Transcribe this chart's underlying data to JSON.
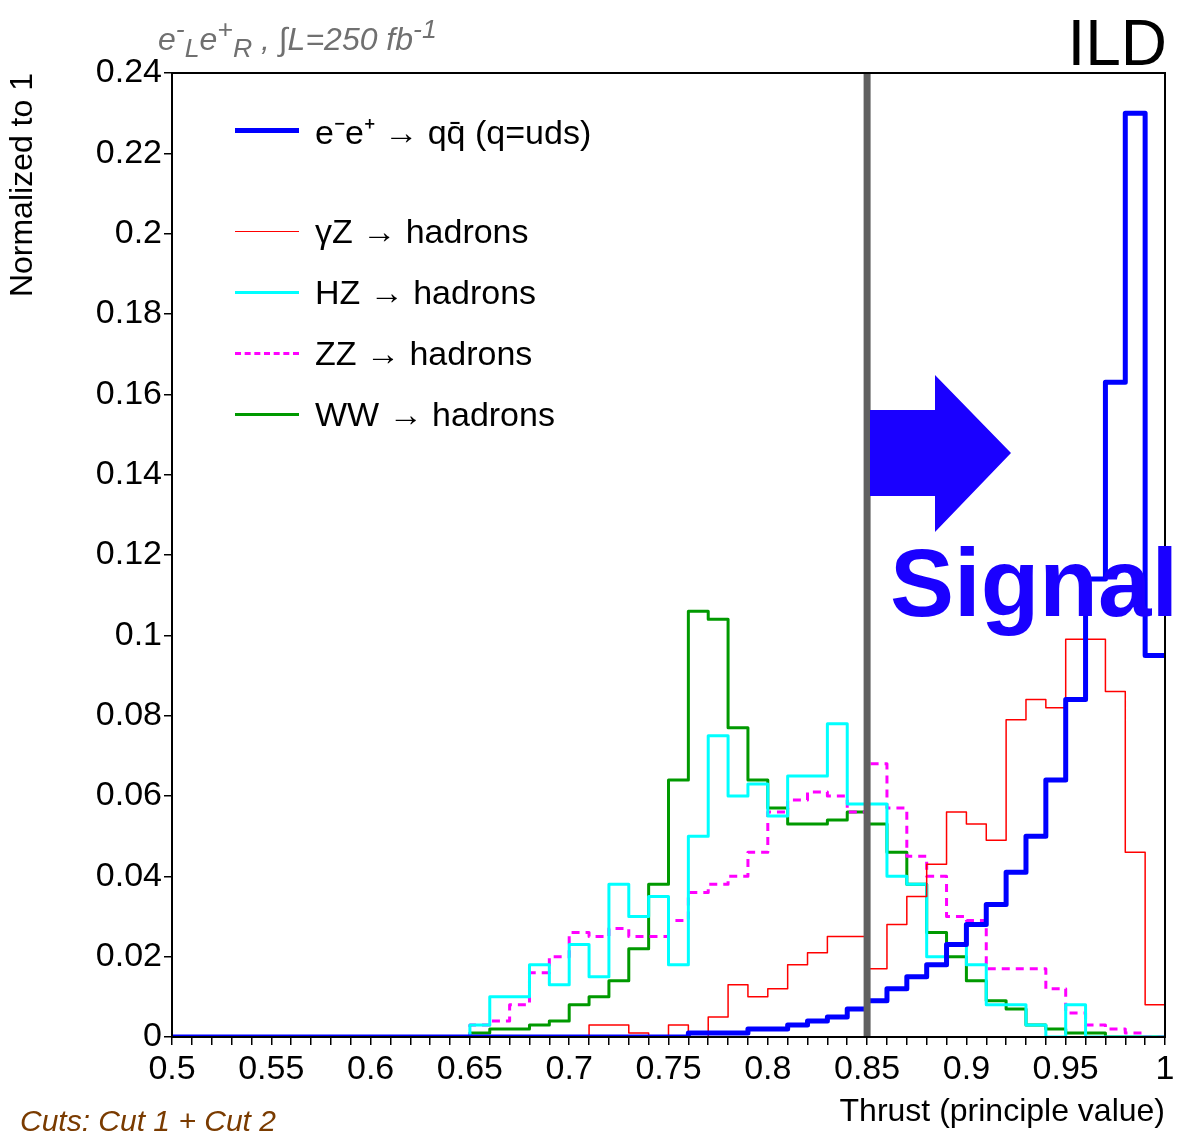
{
  "chart_data": {
    "type": "histogram",
    "xlabel": "Thrust (principle value)",
    "ylabel": "Normalized to 1",
    "bins": [
      0.5,
      0.51,
      0.52,
      0.53,
      0.54,
      0.55,
      0.56,
      0.57,
      0.58,
      0.59,
      0.6,
      0.61,
      0.62,
      0.63,
      0.64,
      0.65,
      0.66,
      0.67,
      0.68,
      0.69,
      0.7,
      0.71,
      0.72,
      0.73,
      0.74,
      0.75,
      0.76,
      0.77,
      0.78,
      0.79,
      0.8,
      0.81,
      0.82,
      0.83,
      0.84,
      0.85,
      0.86,
      0.87,
      0.88,
      0.89,
      0.9,
      0.91,
      0.92,
      0.93,
      0.94,
      0.95,
      0.96,
      0.97,
      0.98,
      0.99,
      1
    ],
    "series": [
      {
        "name": "e⁻e⁺ → qq̄ (q=uds)",
        "color": "#0000ff",
        "values": [
          0,
          0,
          0,
          0,
          0,
          0,
          0,
          0,
          0,
          0,
          0,
          0,
          0,
          0,
          0,
          0,
          0,
          0,
          0,
          0,
          0,
          0,
          0,
          0,
          0,
          0,
          0.001,
          0.001,
          0.001,
          0.002,
          0.002,
          0.003,
          0.004,
          0.005,
          0.007,
          0.009,
          0.012,
          0.015,
          0.018,
          0.023,
          0.028,
          0.033,
          0.041,
          0.05,
          0.064,
          0.084,
          0.114,
          0.163,
          0.23,
          0.095
        ]
      },
      {
        "name": "γZ → hadrons",
        "color": "#ff0000",
        "values": [
          0,
          0,
          0,
          0,
          0,
          0,
          0,
          0,
          0,
          0,
          0,
          0,
          0,
          0,
          0,
          0,
          0,
          0,
          0,
          0,
          0,
          0.003,
          0.003,
          0.001,
          0,
          0.003,
          0,
          0.005,
          0.013,
          0.01,
          0.012,
          0.018,
          0.021,
          0.025,
          0.025,
          0.017,
          0.028,
          0.035,
          0.043,
          0.056,
          0.053,
          0.049,
          0.079,
          0.084,
          0.082,
          0.099,
          0.099,
          0.086,
          0.046,
          0.008
        ]
      },
      {
        "name": "HZ → hadrons",
        "color": "#00ffff",
        "values": [
          0,
          0,
          0,
          0,
          0,
          0,
          0,
          0,
          0,
          0,
          0,
          0,
          0,
          0,
          0,
          0.003,
          0.01,
          0.01,
          0.018,
          0.013,
          0.023,
          0.015,
          0.038,
          0.03,
          0.035,
          0.018,
          0.05,
          0.075,
          0.06,
          0.063,
          0.055,
          0.065,
          0.065,
          0.078,
          0.058,
          0.058,
          0.04,
          0.038,
          0.02,
          0.023,
          0.018,
          0.008,
          0.008,
          0.003,
          0,
          0.008,
          0,
          0,
          0,
          0
        ]
      },
      {
        "name": "ZZ → hadrons",
        "color": "#ff00ff",
        "line_style": "dashed",
        "values": [
          0,
          0,
          0,
          0,
          0,
          0,
          0,
          0,
          0,
          0,
          0,
          0,
          0,
          0,
          0,
          0.003,
          0.004,
          0.008,
          0.016,
          0.02,
          0.026,
          0.025,
          0.027,
          0.025,
          0.025,
          0.029,
          0.036,
          0.038,
          0.04,
          0.046,
          0.056,
          0.059,
          0.061,
          0.06,
          0.056,
          0.068,
          0.057,
          0.045,
          0.04,
          0.03,
          0.029,
          0.017,
          0.017,
          0.017,
          0.012,
          0.006,
          0.003,
          0.002,
          0.001,
          0
        ]
      },
      {
        "name": "WW → hadrons",
        "color": "#009900",
        "values": [
          0,
          0,
          0,
          0,
          0,
          0,
          0,
          0,
          0,
          0,
          0,
          0,
          0,
          0,
          0,
          0.001,
          0.002,
          0.002,
          0.003,
          0.004,
          0.008,
          0.01,
          0.014,
          0.022,
          0.038,
          0.064,
          0.106,
          0.104,
          0.077,
          0.064,
          0.057,
          0.053,
          0.053,
          0.054,
          0.056,
          0.053,
          0.046,
          0.038,
          0.026,
          0.02,
          0.014,
          0.009,
          0.007,
          0.003,
          0.002,
          0.001,
          0.001,
          0,
          0,
          0
        ]
      }
    ],
    "xlim": [
      0.5,
      1
    ],
    "xticks": [
      0.5,
      {
        "value": 0.51,
        "label": null
      },
      {
        "value": 0.52,
        "label": null
      },
      {
        "value": 0.53,
        "label": null
      },
      {
        "value": 0.54,
        "label": null
      },
      0.55,
      {
        "value": 0.56,
        "label": null
      },
      {
        "value": 0.57,
        "label": null
      },
      {
        "value": 0.58,
        "label": null
      },
      {
        "value": 0.59,
        "label": null
      },
      0.6,
      {
        "value": 0.61,
        "label": null
      },
      {
        "value": 0.62,
        "label": null
      },
      {
        "value": 0.63,
        "label": null
      },
      {
        "value": 0.64,
        "label": null
      },
      0.65,
      {
        "value": 0.66,
        "label": null
      },
      {
        "value": 0.67,
        "label": null
      },
      {
        "value": 0.68,
        "label": null
      },
      {
        "value": 0.69,
        "label": null
      },
      0.7,
      {
        "value": 0.71,
        "label": null
      },
      {
        "value": 0.72,
        "label": null
      },
      {
        "value": 0.73,
        "label": null
      },
      {
        "value": 0.74,
        "label": null
      },
      0.75,
      {
        "value": 0.76,
        "label": null
      },
      {
        "value": 0.77,
        "label": null
      },
      {
        "value": 0.78,
        "label": null
      },
      {
        "value": 0.79,
        "label": null
      },
      0.8,
      {
        "value": 0.81,
        "label": null
      },
      {
        "value": 0.82,
        "label": null
      },
      {
        "value": 0.83,
        "label": null
      },
      {
        "value": 0.84,
        "label": null
      },
      0.85,
      {
        "value": 0.86,
        "label": null
      },
      {
        "value": 0.87,
        "label": null
      },
      {
        "value": 0.88,
        "label": null
      },
      {
        "value": 0.89,
        "label": null
      },
      0.9,
      {
        "value": 0.91,
        "label": null
      },
      {
        "value": 0.92,
        "label": null
      },
      {
        "value": 0.93,
        "label": null
      },
      {
        "value": 0.94,
        "label": null
      },
      0.95,
      {
        "value": 0.96,
        "label": null
      },
      {
        "value": 0.97,
        "label": null
      },
      {
        "value": 0.98,
        "label": null
      },
      {
        "value": 0.99,
        "label": null
      },
      1
    ],
    "ylim": [
      0,
      0.24
    ],
    "yticks": [
      0,
      0.02,
      0.04,
      0.06,
      0.08,
      0.1,
      0.12,
      0.14,
      0.16,
      0.18,
      0.2,
      0.22,
      0.24
    ],
    "ref_lines": [
      {
        "axis": "x",
        "value": 0.85,
        "color": "#606060"
      }
    ],
    "annotations": [
      "e$^{-}$$_{L}$e$^{+}$$_{R}$ , ∫L=250 fb$^{-1}$",
      "ILD",
      "Signal",
      "Cuts: Cut 1 + Cut 2"
    ],
    "legend": "top left",
    "grid": false
  }
}
